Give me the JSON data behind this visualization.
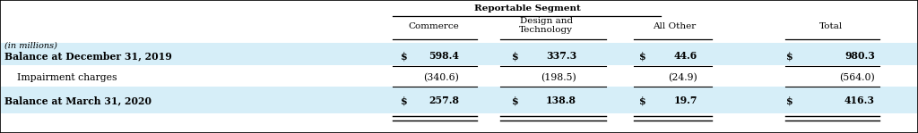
{
  "title": "Reportable Segment",
  "italic_label": "(in millions)",
  "col_headers_line1": [
    "",
    "Commerce",
    "Design and",
    "All Other",
    "",
    "Total"
  ],
  "col_headers_line2": [
    "",
    "",
    "Technology",
    "",
    "",
    ""
  ],
  "rows": [
    {
      "label": "Balance at December 31, 2019",
      "bold": true,
      "highlight": true,
      "cells": [
        "$",
        "598.4",
        "$",
        "337.3",
        "$",
        "44.6",
        "$",
        "980.3"
      ]
    },
    {
      "label": "    Impairment charges",
      "bold": false,
      "highlight": false,
      "cells": [
        "",
        "(340.6)",
        "",
        "(198.5)",
        "",
        "(24.9)",
        "",
        "(564.0)"
      ]
    },
    {
      "label": "Balance at March 31, 2020",
      "bold": true,
      "highlight": true,
      "cells": [
        "$",
        "257.8",
        "$",
        "138.8",
        "$",
        "19.7",
        "$",
        "416.3"
      ]
    }
  ],
  "highlight_color": "#d6eef8",
  "background_color": "#ffffff",
  "border_color": "#000000",
  "text_color": "#000000"
}
